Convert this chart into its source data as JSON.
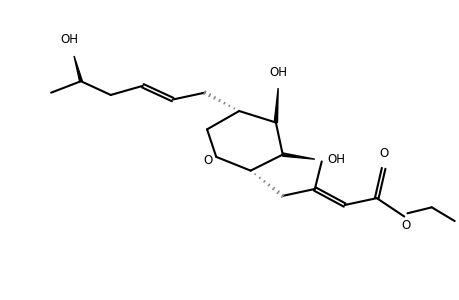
{
  "bg_color": "#ffffff",
  "line_color": "#000000",
  "gray_color": "#808080",
  "line_width": 1.5,
  "font_size": 8.5,
  "fig_width": 4.6,
  "fig_height": 3.0,
  "dpi": 100,
  "xlim": [
    0,
    10
  ],
  "ylim": [
    0,
    6
  ]
}
